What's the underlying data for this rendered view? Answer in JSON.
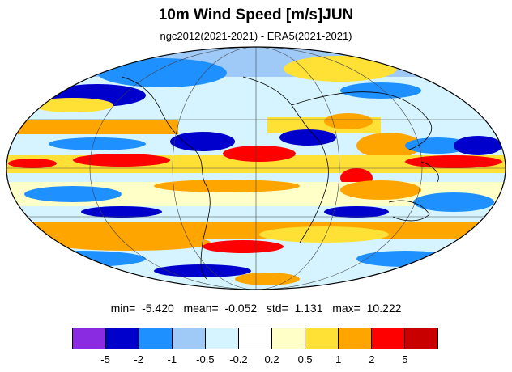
{
  "title": "10m Wind Speed [m/s]JUN",
  "subtitle": "ngc2012(2021-2021) - ERA5(2021-2021)",
  "stats": {
    "min_label": "min=",
    "min": "-5.420",
    "mean_label": "mean=",
    "mean": "-0.052",
    "std_label": "std=",
    "std": "1.131",
    "max_label": "max=",
    "max": "10.222"
  },
  "colorbar": {
    "colors": [
      "#8a2be2",
      "#0000cd",
      "#1e90ff",
      "#9fcaf8",
      "#d6f4ff",
      "#ffffff",
      "#ffffc8",
      "#ffe135",
      "#ffa500",
      "#ff0000",
      "#c80000"
    ],
    "tick_labels": [
      "-5",
      "-2",
      "-1",
      "-0.5",
      "-0.2",
      "0.2",
      "0.5",
      "1",
      "2",
      "5"
    ]
  },
  "map": {
    "projection": "Mollweide",
    "background_color": "#ffffff",
    "coastline_color": "#000000",
    "grid_color": "#444444"
  }
}
